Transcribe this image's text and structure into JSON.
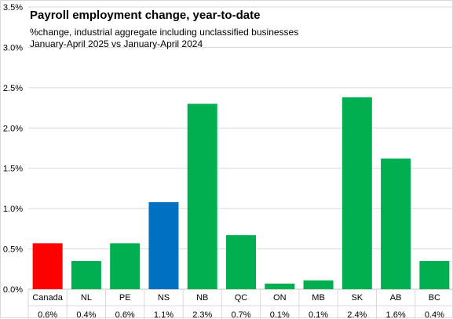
{
  "chart_data": {
    "type": "bar",
    "title": "Payroll employment change, year-to-date",
    "subtitle_lines": [
      "%change, industrial aggregate including unclassified businesses",
      "January-April 2025 vs January-April 2024"
    ],
    "categories": [
      "Canada",
      "NL",
      "PE",
      "NS",
      "NB",
      "QC",
      "ON",
      "MB",
      "SK",
      "AB",
      "BC"
    ],
    "values": [
      0.57,
      0.35,
      0.57,
      1.08,
      2.3,
      0.67,
      0.07,
      0.11,
      2.38,
      1.62,
      0.35
    ],
    "value_labels": [
      "0.6%",
      "0.4%",
      "0.6%",
      "1.1%",
      "2.3%",
      "0.7%",
      "0.1%",
      "0.1%",
      "2.4%",
      "1.6%",
      "0.4%"
    ],
    "bar_colors": [
      "#ff0000",
      "#00b050",
      "#00b050",
      "#0070c0",
      "#00b050",
      "#00b050",
      "#00b050",
      "#00b050",
      "#00b050",
      "#00b050",
      "#00b050"
    ],
    "ylim": [
      0,
      3.5
    ],
    "ytick_labels": [
      "0.0%",
      "0.5%",
      "1.0%",
      "1.5%",
      "2.0%",
      "2.5%",
      "3.0%",
      "3.5%"
    ],
    "grid": true,
    "xlabel": "",
    "ylabel": ""
  },
  "colors": {
    "canada": "#ff0000",
    "highlight": "#0070c0",
    "default": "#00b050",
    "gridline": "#d9d9d9"
  }
}
